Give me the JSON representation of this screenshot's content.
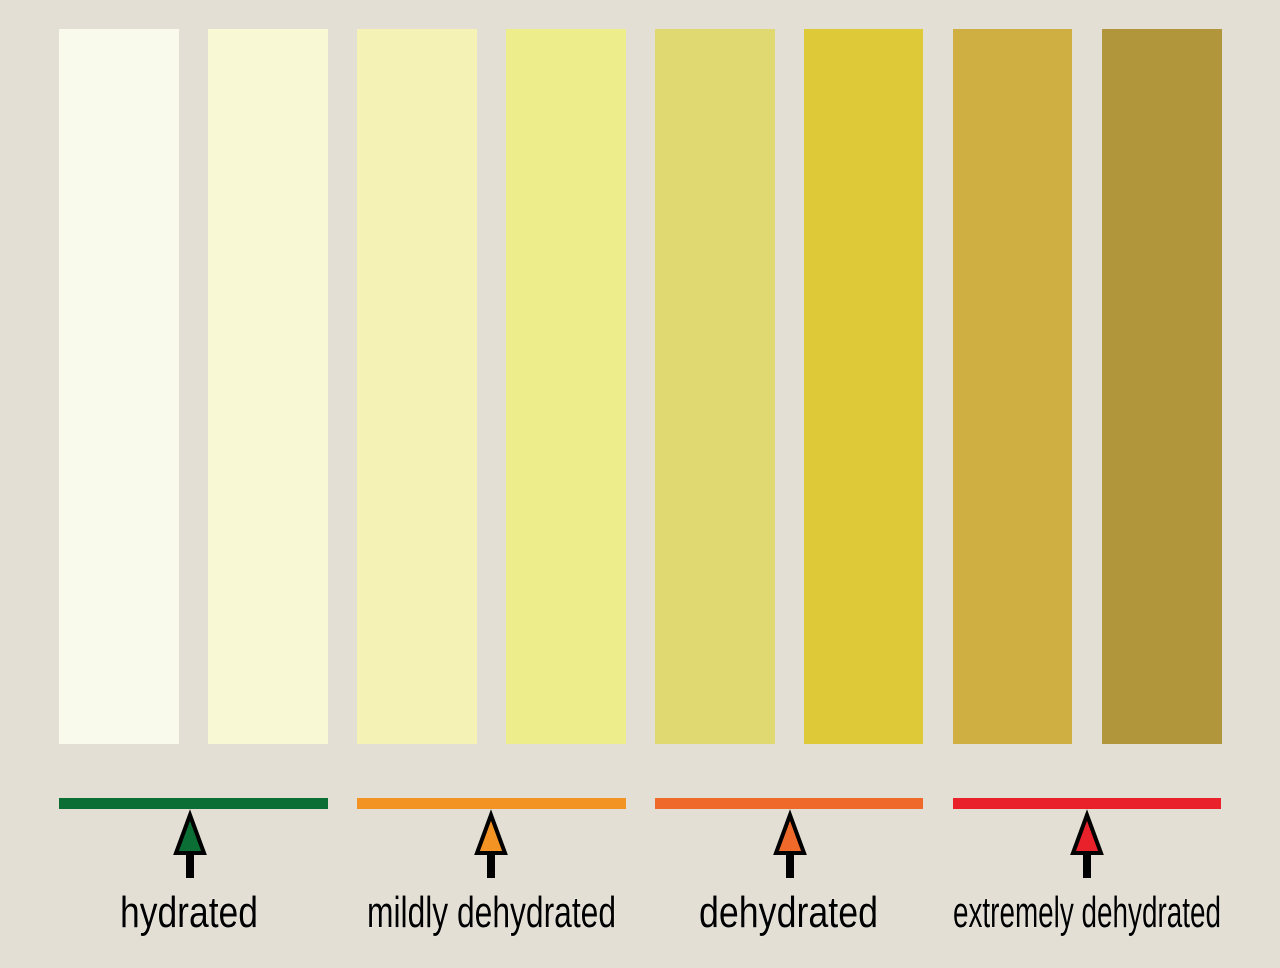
{
  "labels": [
    "hydrated",
    "mildly dehydrated",
    "dehydrated",
    "extremely dehydrated"
  ]
}
